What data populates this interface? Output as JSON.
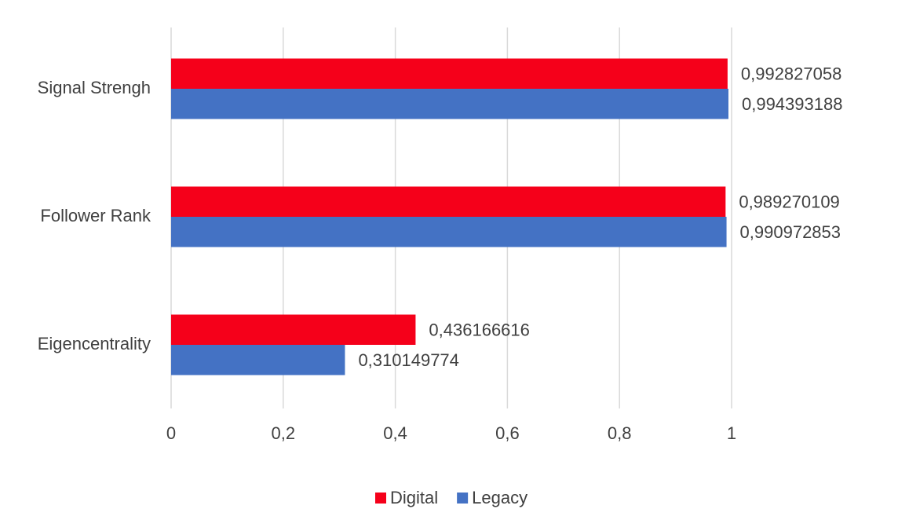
{
  "chart_data": {
    "type": "barh",
    "categories": [
      "Signal Strengh",
      "Follower Rank",
      "Eigencentrality"
    ],
    "series": [
      {
        "name": "Digital",
        "color": "#f5001a",
        "values": [
          0.992827058,
          0.989270109,
          0.436166616
        ],
        "value_labels": [
          "0,992827058",
          "0,989270109",
          "0,436166616"
        ]
      },
      {
        "name": "Legacy",
        "color": "#4472c4",
        "values": [
          0.994393188,
          0.990972853,
          0.310149774
        ],
        "value_labels": [
          "0,994393188",
          "0,990972853",
          "0,310149774"
        ]
      }
    ],
    "xlim": [
      0,
      1
    ],
    "xticks": [
      0,
      {
        "value": 0.2,
        "label": "0,2"
      },
      {
        "value": 0.4,
        "label": "0,4"
      },
      {
        "value": 0.6,
        "label": "0,6"
      },
      {
        "value": 0.8,
        "label": "0,8"
      },
      1
    ],
    "grid": true,
    "legend": "bottom"
  }
}
